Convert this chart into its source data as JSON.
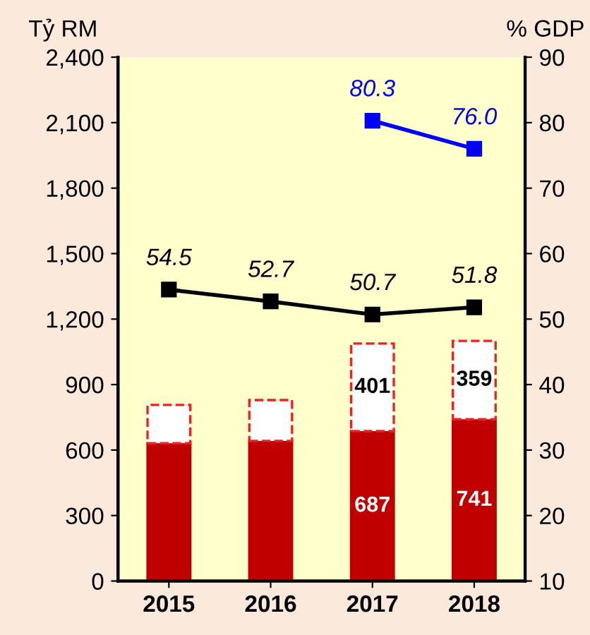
{
  "chart_data": {
    "type": "bar",
    "stacked": true,
    "ylabel": "Tỷ RM",
    "y2label": "% GDP",
    "categories": [
      "2015",
      "2016",
      "2017",
      "2018"
    ],
    "series": [
      {
        "color": "#c00000",
        "values": [
          631,
          642,
          687,
          741
        ],
        "value_labels": [
          null,
          null,
          "687",
          "741"
        ]
      },
      {
        "color": "#ffffff",
        "values": [
          176,
          187,
          401,
          359
        ],
        "value_labels": [
          null,
          null,
          "401",
          "359"
        ]
      },
      {
        "type": "line",
        "axis": "y2",
        "color": "#000000",
        "marker": "square",
        "values": [
          54.5,
          52.7,
          50.7,
          51.8
        ],
        "value_labels": [
          "54.5",
          "52.7",
          "50.7",
          "51.8"
        ]
      },
      {
        "type": "line",
        "axis": "y2",
        "color": "#0000ff",
        "marker": "square",
        "values": [
          null,
          null,
          80.3,
          76.0
        ],
        "value_labels": [
          null,
          null,
          "80.3",
          "76.0"
        ]
      }
    ],
    "ylim": [
      0,
      2400
    ],
    "yticks": [
      {
        "value": 0,
        "label": "0"
      },
      {
        "value": 300,
        "label": "300"
      },
      {
        "value": 600,
        "label": "600"
      },
      {
        "value": 900,
        "label": "900"
      },
      {
        "value": 1200,
        "label": "1,200"
      },
      {
        "value": 1500,
        "label": "1,500"
      },
      {
        "value": 1800,
        "label": "1,800"
      },
      {
        "value": 2100,
        "label": "2,100"
      },
      {
        "value": 2400,
        "label": "2,400"
      }
    ],
    "y2lim": [
      10,
      90
    ],
    "y2ticks": [
      10,
      20,
      30,
      40,
      50,
      60,
      70,
      80,
      90
    ],
    "grid": false,
    "legend": false
  }
}
